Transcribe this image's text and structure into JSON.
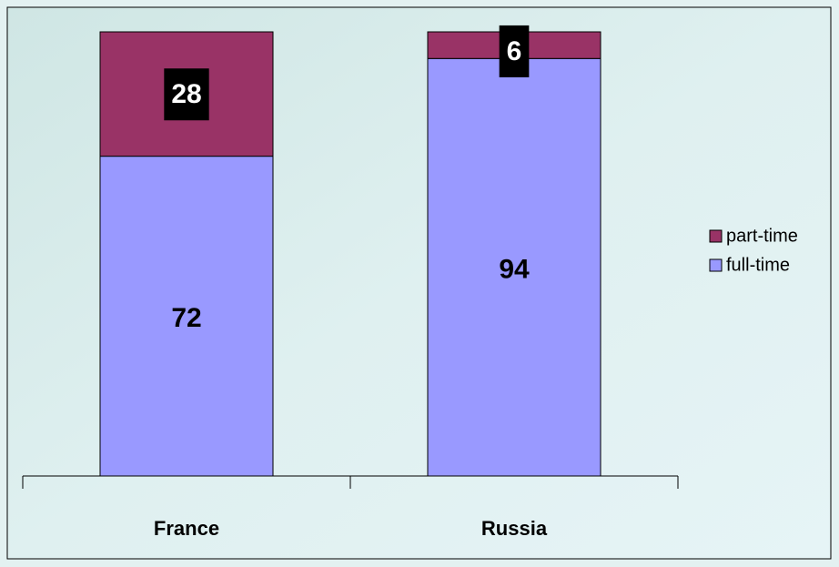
{
  "chart_data": {
    "type": "stacked_bar",
    "categories": [
      "France",
      "Russia"
    ],
    "series": [
      {
        "name": "part-time",
        "color": "#993366",
        "values": [
          28,
          6
        ]
      },
      {
        "name": "full-time",
        "color": "#9999ff",
        "values": [
          72,
          94
        ]
      }
    ],
    "ylim": [
      0,
      100
    ],
    "legend": "right"
  }
}
